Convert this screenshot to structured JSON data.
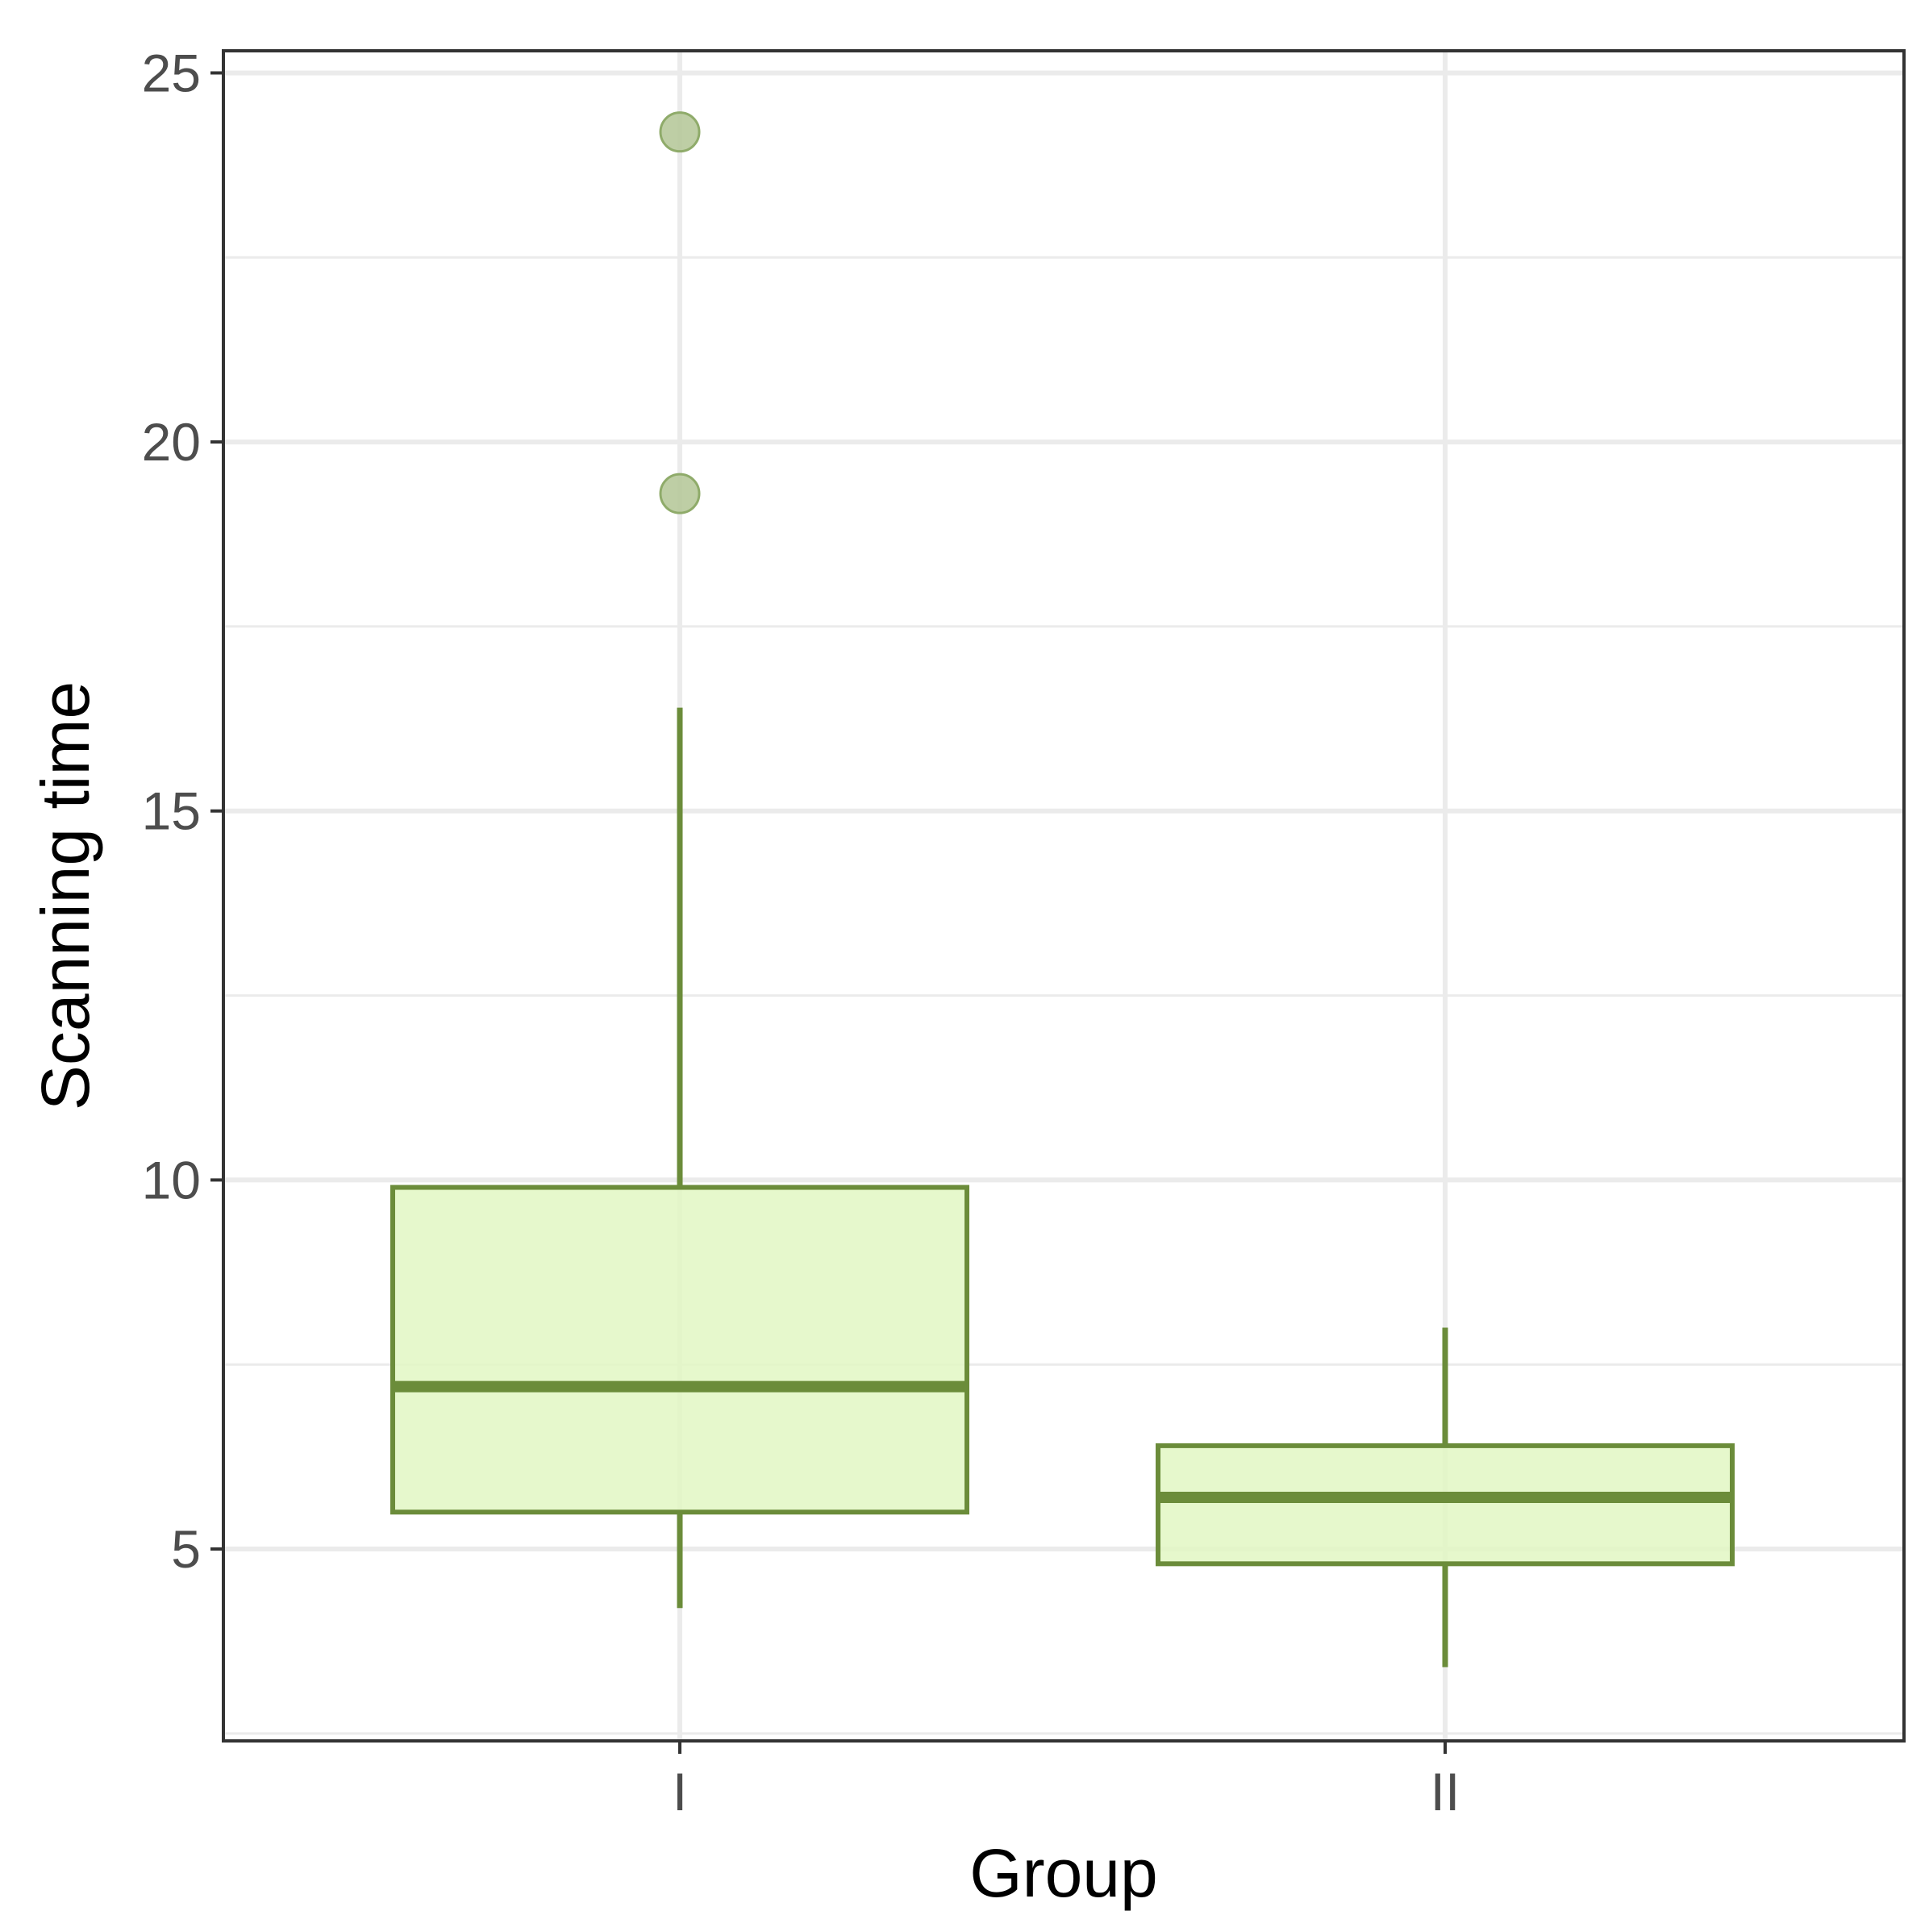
{
  "chart_data": {
    "type": "boxplot",
    "xlabel": "Group",
    "ylabel": "Scanning time",
    "categories": [
      "I",
      "II"
    ],
    "ylim": [
      2.4,
      25.3
    ],
    "yticks": [
      5,
      10,
      15,
      20,
      25
    ],
    "ytick_labels": [
      "5",
      "10",
      "15",
      "20",
      "25"
    ],
    "grid": true,
    "boxes": [
      {
        "category": "I",
        "whisker_low": 4.2,
        "q1": 5.5,
        "median": 7.2,
        "q3": 9.9,
        "whisker_high": 16.4,
        "outliers": [
          24.2,
          19.3
        ]
      },
      {
        "category": "II",
        "whisker_low": 3.4,
        "q1": 4.8,
        "median": 5.7,
        "q3": 6.4,
        "whisker_high": 8.0,
        "outliers": []
      }
    ],
    "colors": {
      "box_fill": "#e2f7c3",
      "box_stroke": "#6b8c3a",
      "outlier_fill": "#b7c99b",
      "outlier_stroke": "#8fab6a",
      "grid": "#ebebeb",
      "panel_border": "#333333"
    }
  }
}
